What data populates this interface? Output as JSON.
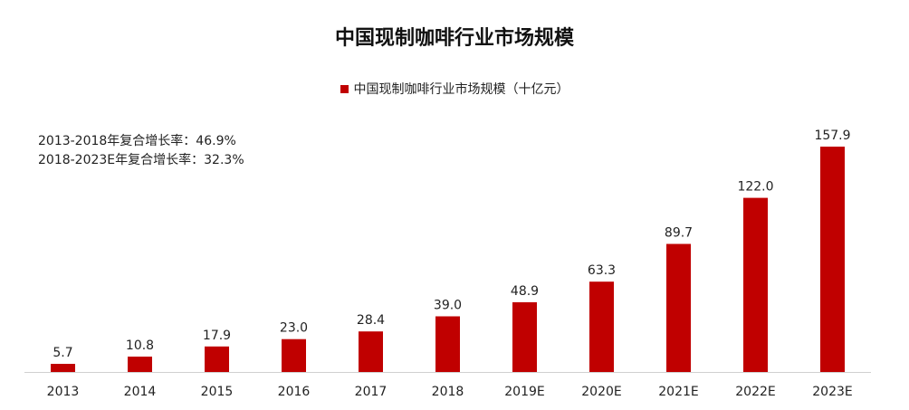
{
  "chart_data": {
    "type": "bar",
    "title": "中国现制咖啡行业市场规模",
    "legend": [
      "中国现制咖啡行业市场规模（十亿元）"
    ],
    "legend_position": "top",
    "annotations": [
      "2013-2018年复合增长率：46.9%",
      "2018-2023E年复合增长率：32.3%"
    ],
    "categories": [
      "2013",
      "2014",
      "2015",
      "2016",
      "2017",
      "2018",
      "2019E",
      "2020E",
      "2021E",
      "2022E",
      "2023E"
    ],
    "series": [
      {
        "name": "中国现制咖啡行业市场规模（十亿元）",
        "values": [
          5.7,
          10.8,
          17.9,
          23.0,
          28.4,
          39.0,
          48.9,
          63.3,
          89.7,
          122.0,
          157.9
        ],
        "labels": [
          "5.7",
          "10.8",
          "17.9",
          "23.0",
          "28.4",
          "39.0",
          "48.9",
          "63.3",
          "89.7",
          "122.0",
          "157.9"
        ],
        "color": "#C00000"
      }
    ],
    "xlabel": "",
    "ylabel": "",
    "ylim": [
      0,
      160
    ],
    "grid": false
  }
}
